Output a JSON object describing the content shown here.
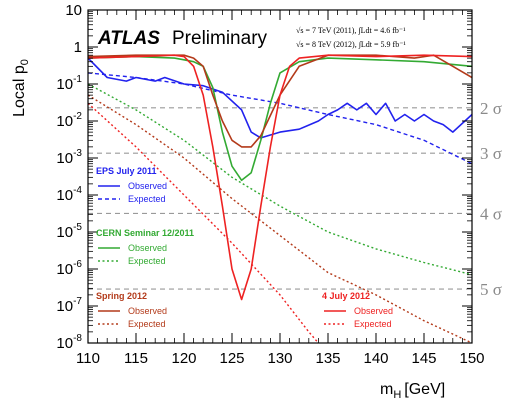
{
  "chart_data": {
    "type": "line",
    "title": "",
    "experiment": "ATLAS",
    "status": "Preliminary",
    "lumi": [
      "√s = 7 TeV (2011), ∫Ldt = 4.6 fb⁻¹",
      "√s = 8 TeV (2012), ∫Ldt = 5.9 fb⁻¹"
    ],
    "xlabel": "m",
    "xlabel_sub": "H",
    "xlabel_unit": "[GeV]",
    "ylabel": "Local p",
    "ylabel_sub": "0",
    "xlim": [
      110,
      150
    ],
    "ylim": [
      1e-08,
      10
    ],
    "yscale": "log",
    "xticks": [
      "110",
      "115",
      "120",
      "125",
      "130",
      "135",
      "140",
      "145",
      "150"
    ],
    "yticks": [
      {
        "base": "10",
        "exp": ""
      },
      {
        "base": "1",
        "exp": ""
      },
      {
        "base": "10",
        "exp": "-1"
      },
      {
        "base": "10",
        "exp": "-2"
      },
      {
        "base": "10",
        "exp": "-3"
      },
      {
        "base": "10",
        "exp": "-4"
      },
      {
        "base": "10",
        "exp": "-5"
      },
      {
        "base": "10",
        "exp": "-6"
      },
      {
        "base": "10",
        "exp": "-7"
      },
      {
        "base": "10",
        "exp": "-8"
      }
    ],
    "sigma_lines": [
      {
        "label": "2 σ",
        "p": 0.02275
      },
      {
        "label": "3 σ",
        "p": 0.00135
      },
      {
        "label": "4 σ",
        "p": 3.17e-05
      },
      {
        "label": "5 σ",
        "p": 2.87e-07
      }
    ],
    "groups": [
      {
        "name": "EPS July 2011",
        "color": "#2222ee",
        "observed": "Observed",
        "expected": "Expected"
      },
      {
        "name": "CERN Seminar 12/2011",
        "color": "#33aa33",
        "observed": "Observed",
        "expected": "Expected"
      },
      {
        "name": "Spring 2012",
        "color": "#b33a1a",
        "observed": "Observed",
        "expected": "Expected"
      },
      {
        "name": "4 July 2012",
        "color": "#ee2222",
        "observed": "Observed",
        "expected": "Expected"
      }
    ],
    "series": [
      {
        "group": 0,
        "kind": "observed",
        "x": [
          110,
          112,
          114,
          115,
          117,
          118,
          120,
          122,
          124,
          126,
          127,
          128,
          130,
          132,
          134,
          135,
          136,
          137,
          138,
          139,
          140,
          141,
          142,
          143,
          144,
          145,
          146,
          147,
          148,
          150
        ],
        "y": [
          0.5,
          0.15,
          0.12,
          0.15,
          0.12,
          0.15,
          0.1,
          0.09,
          0.06,
          0.02,
          0.005,
          0.0035,
          0.005,
          0.006,
          0.01,
          0.015,
          0.02,
          0.03,
          0.02,
          0.03,
          0.015,
          0.03,
          0.01,
          0.015,
          0.01,
          0.015,
          0.01,
          0.008,
          0.005,
          0.015
        ]
      },
      {
        "group": 0,
        "kind": "expected",
        "x": [
          110,
          115,
          120,
          125,
          130,
          135,
          140,
          145,
          150
        ],
        "y": [
          0.2,
          0.15,
          0.1,
          0.05,
          0.03,
          0.015,
          0.008,
          0.003,
          0.0007
        ]
      },
      {
        "group": 1,
        "kind": "observed",
        "x": [
          110,
          115,
          119,
          120,
          121,
          122,
          123,
          124,
          125,
          126,
          127,
          128,
          129,
          130,
          132,
          135,
          140,
          145,
          150
        ],
        "y": [
          0.5,
          0.55,
          0.5,
          0.45,
          0.4,
          0.3,
          0.08,
          0.005,
          0.0006,
          0.00025,
          0.0004,
          0.003,
          0.03,
          0.2,
          0.4,
          0.5,
          0.45,
          0.4,
          0.3
        ]
      },
      {
        "group": 1,
        "kind": "expected",
        "x": [
          110,
          115,
          120,
          125,
          130,
          135,
          140,
          145,
          150
        ],
        "y": [
          0.1,
          0.02,
          0.003,
          0.0003,
          5e-05,
          1e-05,
          3.5e-06,
          1.5e-06,
          7e-07
        ]
      },
      {
        "group": 2,
        "kind": "observed",
        "x": [
          110,
          115,
          119,
          120,
          121,
          122,
          123,
          124,
          125,
          126,
          127,
          128,
          130,
          132,
          135,
          140,
          144,
          146,
          148,
          150
        ],
        "y": [
          0.55,
          0.6,
          0.6,
          0.6,
          0.5,
          0.3,
          0.05,
          0.01,
          0.003,
          0.002,
          0.002,
          0.004,
          0.05,
          0.3,
          0.6,
          0.6,
          0.5,
          0.6,
          0.3,
          0.15
        ]
      },
      {
        "group": 2,
        "kind": "expected",
        "x": [
          110,
          115,
          120,
          125,
          130,
          135,
          140,
          145,
          150
        ],
        "y": [
          0.05,
          0.008,
          0.001,
          8e-05,
          8e-06,
          8e-07,
          2e-07,
          4e-08,
          1e-08
        ]
      },
      {
        "group": 3,
        "kind": "observed",
        "x": [
          110,
          115,
          119,
          120,
          121,
          122,
          123,
          124,
          125,
          126,
          127,
          128,
          129,
          130,
          131,
          132,
          135,
          140,
          145,
          150
        ],
        "y": [
          0.5,
          0.55,
          0.6,
          0.55,
          0.3,
          0.05,
          0.002,
          5e-05,
          1e-06,
          1.5e-07,
          1e-06,
          5e-05,
          0.002,
          0.05,
          0.3,
          0.5,
          0.6,
          0.55,
          0.6,
          0.55
        ]
      },
      {
        "group": 3,
        "kind": "expected",
        "x": [
          110,
          115,
          120,
          125,
          130,
          133,
          135
        ],
        "y": [
          0.03,
          0.002,
          0.0001,
          5e-06,
          2e-07,
          2e-08,
          5e-09
        ]
      }
    ]
  }
}
